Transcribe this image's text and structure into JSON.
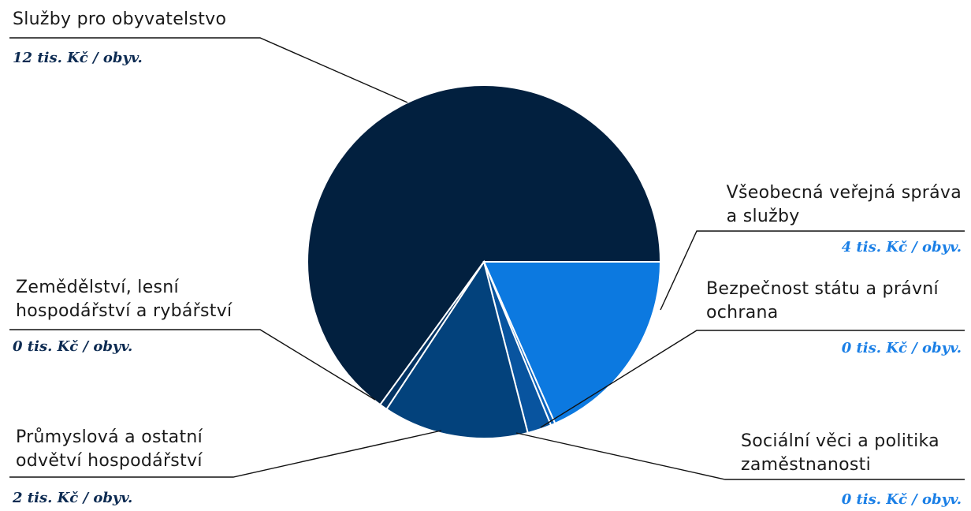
{
  "chart_data": {
    "type": "pie",
    "unit": "tis. Kč / obyv.",
    "slices": [
      {
        "name": "Služby pro obyvatelstvo",
        "value": 12,
        "value_label": "12 tis. Kč / obyv.",
        "share": 0.65,
        "color": "#02203f"
      },
      {
        "name": "Všeobecná veřejná správa a služby",
        "value": 4,
        "value_label": "4 tis. Kč / obyv.",
        "share": 0.184,
        "color": "#0c79e0"
      },
      {
        "name": "Bezpečnost státu a právní ochrana",
        "value": 0,
        "value_label": "0 tis. Kč / obyv.",
        "share": 0.004,
        "color": "#0a63bd"
      },
      {
        "name": "Sociální věci a politika zaměstnanosti",
        "value": 0,
        "value_label": "0 tis. Kč / obyv.",
        "share": 0.022,
        "color": "#08549f"
      },
      {
        "name": "Průmyslová a ostatní odvětví hospodářství",
        "value": 2,
        "value_label": "2 tis. Kč / obyv.",
        "share": 0.133,
        "color": "#03427c"
      },
      {
        "name": "Zemědělství, lesní hospodářství a rybářství",
        "value": 0,
        "value_label": "0 tis. Kč / obyv.",
        "share": 0.007,
        "color": "#033363"
      }
    ]
  },
  "labels": {
    "sluzby_line1": "Služby pro obyvatelstvo",
    "sluzby_value": "12 tis. Kč / obyv.",
    "spravy_line1": "Všeobecná veřejná správa",
    "spravy_line2": "a služby",
    "spravy_value": "4 tis. Kč / obyv.",
    "bezpecnost_line1": "Bezpečnost státu a právní",
    "bezpecnost_line2": "ochrana",
    "bezpecnost_value": "0 tis. Kč / obyv.",
    "socialni_line1": "Sociální věci a politika",
    "socialni_line2": "zaměstnanosti",
    "socialni_value": "0 tis. Kč / obyv.",
    "prumysl_line1": "Průmyslová a ostatní",
    "prumysl_line2": "odvětví hospodářství",
    "prumysl_value": "2 tis. Kč / obyv.",
    "zemedelstvi_line1": "Zemědělství, lesní",
    "zemedelstvi_line2": "hospodářství a rybářství",
    "zemedelstvi_value": "0 tis. Kč / obyv."
  }
}
